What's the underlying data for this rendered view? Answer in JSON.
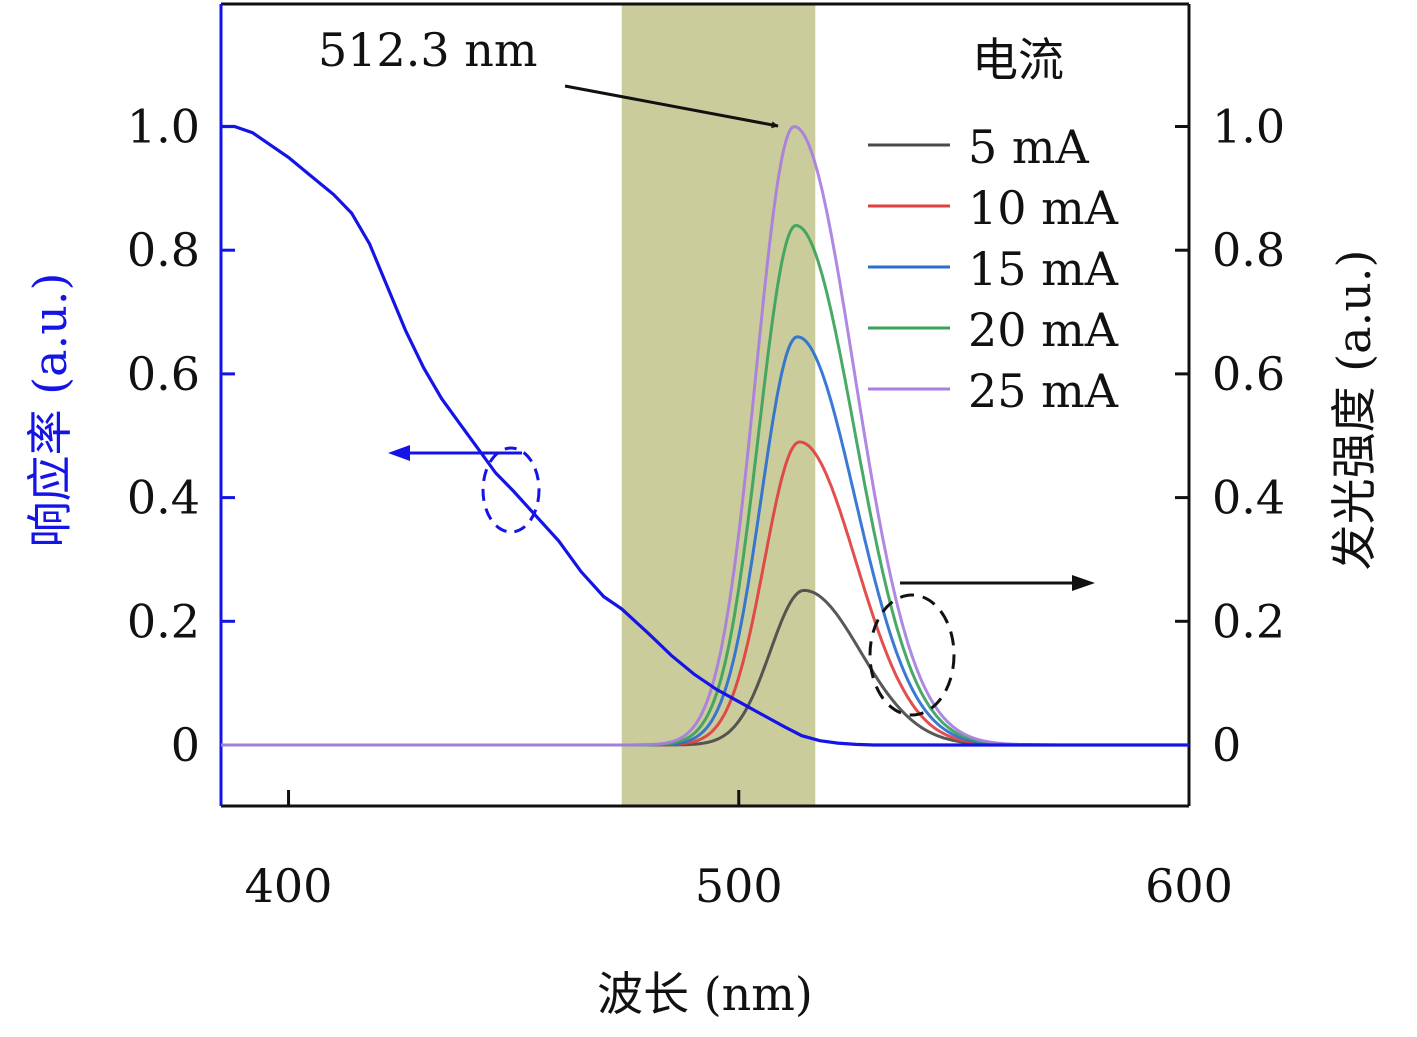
{
  "chart_data": {
    "type": "line",
    "xlabel": "波长 (nm)",
    "ylabel_left": "响应率 (a.u.)",
    "ylabel_right": "发光强度 (a.u.)",
    "xlim": [
      385,
      600
    ],
    "ylim": [
      -0.1,
      1.2
    ],
    "x_ticks": [
      400,
      500,
      600
    ],
    "y_ticks_left": [
      0,
      0.2,
      0.4,
      0.6,
      0.8,
      1.0
    ],
    "y_tick_labels_left": [
      "0",
      "0.2",
      "0.4",
      "0.6",
      "0.8",
      "1.0"
    ],
    "y_ticks_right": [
      0,
      0.2,
      0.4,
      0.6,
      0.8,
      1.0
    ],
    "y_tick_labels_right": [
      "0",
      "0.2",
      "0.4",
      "0.6",
      "0.8",
      "1.0"
    ],
    "shaded_band": {
      "x_start": 474,
      "x_end": 517,
      "color": "#cbcc9c"
    },
    "peak_annotation": {
      "text": "512.3 nm",
      "x": 512.3,
      "y": 1.0
    },
    "legend_title": "电流",
    "legend_position": "top-right",
    "responsivity": {
      "axis": "left",
      "color": "#1414e6",
      "x": [
        385,
        388,
        392,
        396,
        400,
        405,
        410,
        414,
        418,
        422,
        426,
        430,
        434,
        438,
        442,
        446,
        450,
        455,
        460,
        465,
        470,
        474,
        480,
        485,
        490,
        495,
        500,
        505,
        510,
        514,
        518,
        522,
        526,
        530,
        540,
        560,
        580,
        600
      ],
      "y": [
        1.0,
        1.0,
        0.99,
        0.97,
        0.95,
        0.92,
        0.89,
        0.86,
        0.81,
        0.74,
        0.67,
        0.61,
        0.56,
        0.52,
        0.48,
        0.44,
        0.41,
        0.37,
        0.33,
        0.28,
        0.24,
        0.22,
        0.18,
        0.145,
        0.115,
        0.09,
        0.07,
        0.05,
        0.03,
        0.015,
        0.007,
        0.003,
        0.001,
        0.0,
        0.0,
        0.0,
        0.0,
        0.0
      ]
    },
    "series": [
      {
        "name": "5 mA",
        "color": "#4a4a4a",
        "peak": 0.25,
        "center": 514.5,
        "sigma_left": 7.5,
        "sigma_right": 12.5
      },
      {
        "name": "10 mA",
        "color": "#e04040",
        "peak": 0.49,
        "center": 513.5,
        "sigma_left": 7.8,
        "sigma_right": 12.5
      },
      {
        "name": "15 mA",
        "color": "#2a6fd0",
        "peak": 0.66,
        "center": 513.0,
        "sigma_left": 8.0,
        "sigma_right": 12.8
      },
      {
        "name": "20 mA",
        "color": "#3aa35a",
        "peak": 0.84,
        "center": 512.7,
        "sigma_left": 8.2,
        "sigma_right": 13.0
      },
      {
        "name": "25 mA",
        "color": "#a87ee0",
        "peak": 1.0,
        "center": 512.3,
        "sigma_left": 8.4,
        "sigma_right": 13.3
      }
    ]
  }
}
